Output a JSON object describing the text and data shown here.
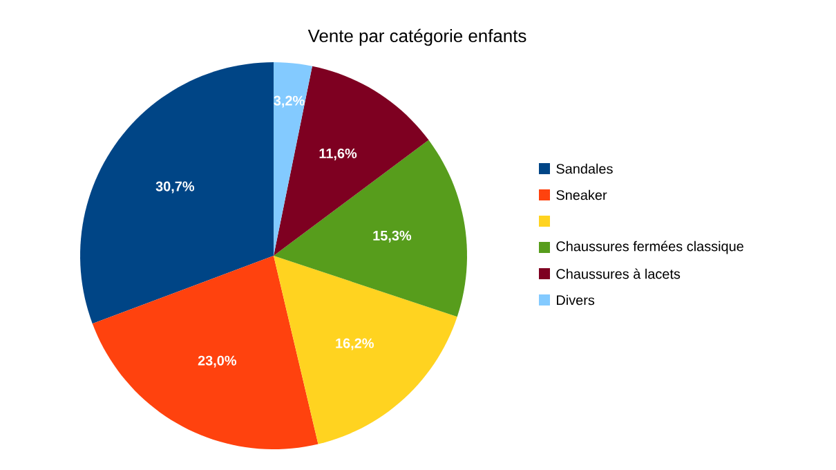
{
  "chart_data": {
    "type": "pie",
    "title": "Vente par catégorie enfants",
    "categories": [
      "Sandales",
      "Sneaker",
      null,
      "Chaussures fermées classique",
      "Chaussures à lacets",
      "Divers"
    ],
    "values": [
      30.7,
      23.0,
      16.2,
      15.3,
      11.6,
      3.2
    ],
    "colors": [
      "#004586",
      "#ff420e",
      "#ffd320",
      "#579d1c",
      "#7e0021",
      "#83caff"
    ],
    "value_labels": [
      "30,7%",
      "23,0%",
      "16,2%",
      "15,3%",
      "11,6%",
      "3,2%"
    ],
    "legend": "right"
  }
}
